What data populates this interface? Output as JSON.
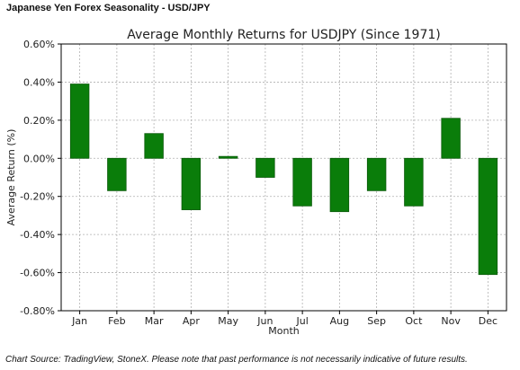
{
  "header": {
    "text": "Japanese Yen Forex Seasonality - USD/JPY"
  },
  "footer": {
    "text": "Chart Source: TradingView, StoneX. Please note that past performance is not necessarily indicative of future results."
  },
  "chart_data": {
    "type": "bar",
    "title": "Average Monthly Returns for USDJPY (Since 1971)",
    "xlabel": "Month",
    "ylabel": "Average Return (%)",
    "categories": [
      "Jan",
      "Feb",
      "Mar",
      "Apr",
      "May",
      "Jun",
      "Jul",
      "Aug",
      "Sep",
      "Oct",
      "Nov",
      "Dec"
    ],
    "values": [
      0.39,
      -0.17,
      0.13,
      -0.27,
      0.01,
      -0.1,
      -0.25,
      -0.28,
      -0.17,
      -0.25,
      0.21,
      -0.61
    ],
    "ylim": [
      -0.8,
      0.6
    ],
    "yticks": [
      0.6,
      0.4,
      0.2,
      0.0,
      -0.2,
      -0.4,
      -0.6,
      -0.8
    ],
    "ytick_labels": [
      "0.60%",
      "0.40%",
      "0.20%",
      "0.00%",
      "-0.20%",
      "-0.40%",
      "-0.60%",
      "-0.80%"
    ],
    "grid": true,
    "bar_color": "#0a7d0a"
  }
}
